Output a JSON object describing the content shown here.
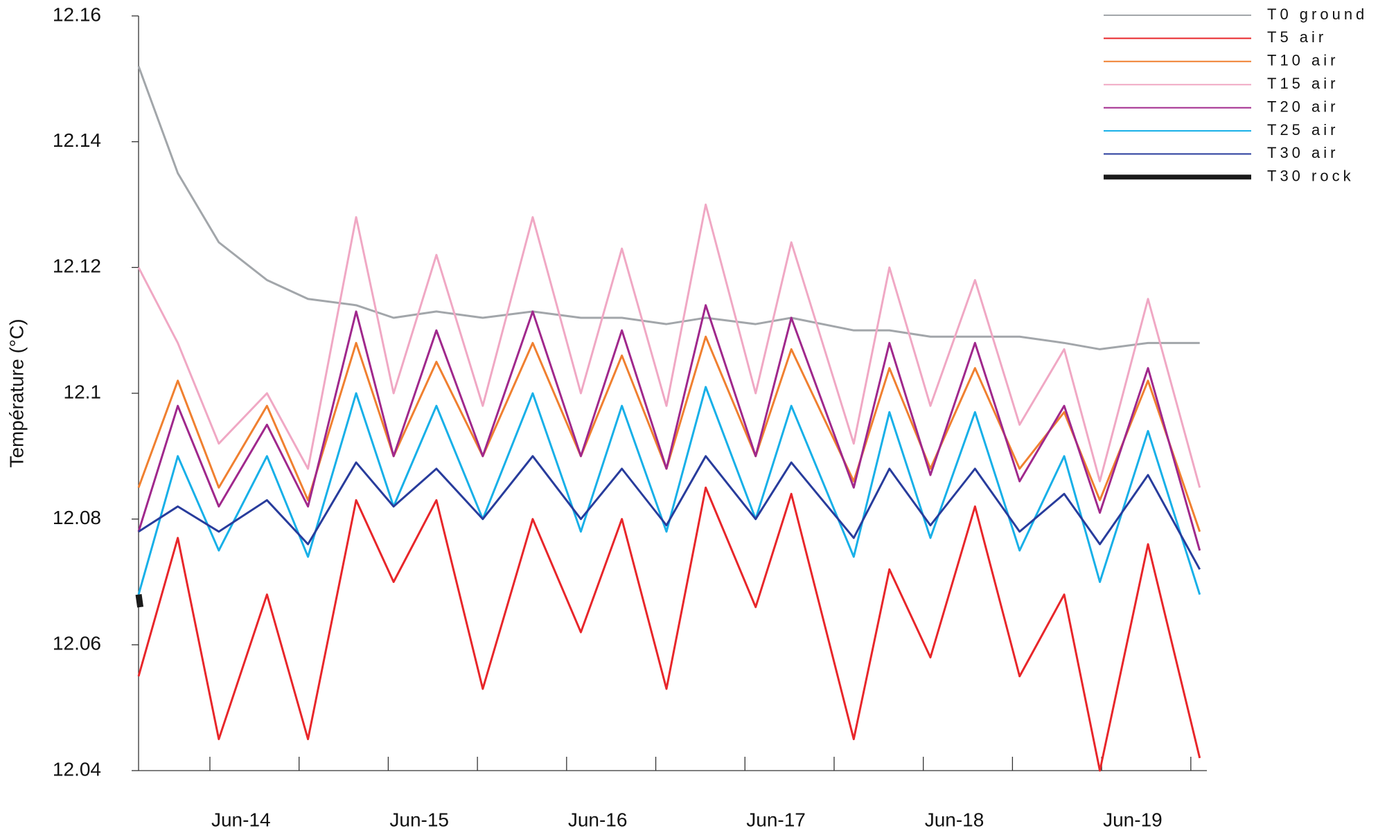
{
  "chart_data": {
    "type": "line",
    "y_label": "Température (°C)",
    "x": [
      13.6,
      13.82,
      14.05,
      14.32,
      14.55,
      14.82,
      15.03,
      15.27,
      15.53,
      15.81,
      16.08,
      16.31,
      16.56,
      16.78,
      17.06,
      17.26,
      17.61,
      17.81,
      18.04,
      18.29,
      18.54,
      18.79,
      18.99,
      19.26,
      19.55
    ],
    "xlim": [
      13.6,
      19.59
    ],
    "xticks": [
      {
        "value": 14,
        "label": "Jun-14"
      },
      {
        "value": 15,
        "label": "Jun-15"
      },
      {
        "value": 16,
        "label": "Jun-16"
      },
      {
        "value": 17,
        "label": "Jun-17"
      },
      {
        "value": 18,
        "label": "Jun-18"
      },
      {
        "value": 19,
        "label": "Jun-19"
      }
    ],
    "xminorticks": [
      14.5,
      15.5,
      16.5,
      17.5,
      18.5,
      19.5
    ],
    "ylim": [
      12.04,
      12.16
    ],
    "yticks": [
      12.04,
      12.06,
      12.08,
      12.1,
      12.12,
      12.14,
      12.16
    ],
    "legend": "upper-right",
    "series": [
      {
        "name": "T0 ground",
        "color": "#a2a6aa",
        "values": [
          12.152,
          12.135,
          12.124,
          12.118,
          12.115,
          12.114,
          12.112,
          12.113,
          12.112,
          12.113,
          12.112,
          12.112,
          12.111,
          12.112,
          12.111,
          12.112,
          12.11,
          12.11,
          12.109,
          12.109,
          12.109,
          12.108,
          12.107,
          12.108,
          12.108
        ]
      },
      {
        "name": "T5 air",
        "color": "#e8262a",
        "values": [
          12.055,
          12.077,
          12.045,
          12.068,
          12.045,
          12.083,
          12.07,
          12.083,
          12.053,
          12.08,
          12.062,
          12.08,
          12.053,
          12.085,
          12.066,
          12.084,
          12.045,
          12.072,
          12.058,
          12.082,
          12.055,
          12.068,
          12.04,
          12.076,
          12.042
        ]
      },
      {
        "name": "T10 air",
        "color": "#f08030",
        "values": [
          12.085,
          12.102,
          12.085,
          12.098,
          12.083,
          12.108,
          12.09,
          12.105,
          12.09,
          12.108,
          12.09,
          12.106,
          12.088,
          12.109,
          12.09,
          12.107,
          12.086,
          12.104,
          12.088,
          12.104,
          12.088,
          12.097,
          12.083,
          12.102,
          12.078
        ]
      },
      {
        "name": "T15 air",
        "color": "#f0a8c4",
        "values": [
          12.12,
          12.108,
          12.092,
          12.1,
          12.088,
          12.128,
          12.1,
          12.122,
          12.098,
          12.128,
          12.1,
          12.123,
          12.098,
          12.13,
          12.1,
          12.124,
          12.092,
          12.12,
          12.098,
          12.118,
          12.095,
          12.107,
          12.086,
          12.115,
          12.085
        ]
      },
      {
        "name": "T20 air",
        "color": "#a0288c",
        "values": [
          12.078,
          12.098,
          12.082,
          12.095,
          12.082,
          12.113,
          12.09,
          12.11,
          12.09,
          12.113,
          12.09,
          12.11,
          12.088,
          12.114,
          12.09,
          12.112,
          12.085,
          12.108,
          12.087,
          12.108,
          12.086,
          12.098,
          12.081,
          12.104,
          12.075
        ]
      },
      {
        "name": "T25 air",
        "color": "#18b0e8",
        "values": [
          12.068,
          12.09,
          12.075,
          12.09,
          12.074,
          12.1,
          12.082,
          12.098,
          12.08,
          12.1,
          12.078,
          12.098,
          12.078,
          12.101,
          12.08,
          12.098,
          12.074,
          12.097,
          12.077,
          12.097,
          12.075,
          12.09,
          12.07,
          12.094,
          12.068
        ]
      },
      {
        "name": "T30 air",
        "color": "#283c9c",
        "values": [
          12.078,
          12.082,
          12.078,
          12.083,
          12.076,
          12.089,
          12.082,
          12.088,
          12.08,
          12.09,
          12.08,
          12.088,
          12.079,
          12.09,
          12.08,
          12.089,
          12.077,
          12.088,
          12.079,
          12.088,
          12.078,
          12.084,
          12.076,
          12.087,
          12.072
        ]
      },
      {
        "name": "T30 rock",
        "color": "#1a1a1a",
        "x": [
          13.6,
          13.61
        ],
        "values": [
          12.068,
          12.066
        ]
      }
    ]
  }
}
